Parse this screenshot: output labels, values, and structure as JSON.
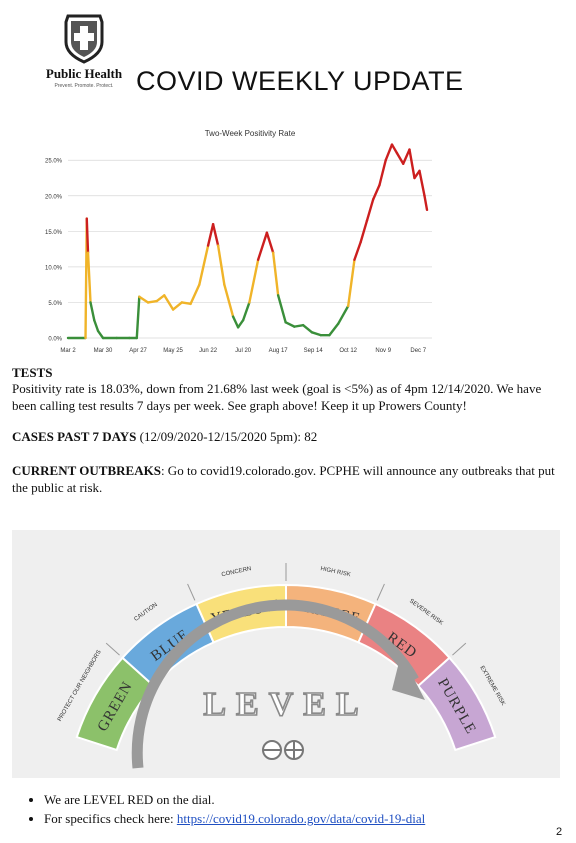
{
  "header": {
    "logo_text": "Public Health",
    "logo_tagline": "Prevent. Promote. Protect.",
    "title": "COVID WEEKLY UPDATE"
  },
  "chart_data": {
    "type": "line",
    "title": "Two-Week Positivity Rate",
    "xlabel": "",
    "ylabel": "",
    "x_tick_labels": [
      "Mar 2",
      "Mar 30",
      "Apr 27",
      "May 25",
      "Jun 22",
      "Jul 20",
      "Aug 17",
      "Sep 14",
      "Oct 12",
      "Nov 9",
      "Dec 7"
    ],
    "y_tick_labels": [
      "0.0%",
      "5.0%",
      "10.0%",
      "15.0%",
      "20.0%",
      "25.0%"
    ],
    "ylim": [
      0,
      27
    ],
    "grid": true,
    "color_scale": {
      "low": "#3a8f3a",
      "mid": "#f0b429",
      "high": "#cc1f1f"
    },
    "series": [
      {
        "x": [
          "2020-03-02",
          "2020-03-16",
          "2020-03-17",
          "2020-03-18",
          "2020-03-20",
          "2020-03-23",
          "2020-03-26",
          "2020-03-30",
          "2020-04-10",
          "2020-04-20",
          "2020-04-26",
          "2020-04-28",
          "2020-05-05",
          "2020-05-12",
          "2020-05-18",
          "2020-05-25",
          "2020-06-01",
          "2020-06-08",
          "2020-06-15",
          "2020-06-22",
          "2020-06-26",
          "2020-06-30",
          "2020-07-05",
          "2020-07-12",
          "2020-07-16",
          "2020-07-20",
          "2020-07-25",
          "2020-08-01",
          "2020-08-08",
          "2020-08-13",
          "2020-08-17",
          "2020-08-23",
          "2020-08-30",
          "2020-09-06",
          "2020-09-13",
          "2020-09-20",
          "2020-09-27",
          "2020-10-04",
          "2020-10-12",
          "2020-10-17",
          "2020-10-22",
          "2020-10-27",
          "2020-11-01",
          "2020-11-06",
          "2020-11-11",
          "2020-11-16",
          "2020-11-20",
          "2020-11-25",
          "2020-11-30",
          "2020-12-04",
          "2020-12-08",
          "2020-12-12",
          "2020-12-14"
        ],
        "y": [
          0.0,
          0.0,
          16.8,
          12.0,
          5.0,
          2.5,
          1.0,
          0.0,
          0.0,
          0.0,
          0.0,
          5.8,
          5.0,
          5.2,
          6.0,
          4.0,
          5.0,
          4.8,
          7.5,
          13.0,
          16.0,
          13.0,
          7.5,
          3.0,
          1.5,
          2.5,
          5.0,
          11.0,
          14.8,
          12.0,
          6.0,
          2.2,
          1.6,
          1.8,
          0.8,
          0.4,
          0.4,
          2.0,
          4.5,
          11.0,
          13.5,
          16.5,
          19.5,
          21.5,
          25.0,
          27.2,
          26.0,
          24.5,
          26.5,
          22.5,
          23.5,
          20.0,
          18.03
        ]
      }
    ]
  },
  "tests": {
    "heading": "TESTS",
    "text": "Positivity rate is 18.03%, down from 21.68% last week (goal is <5%) as of 4pm 12/14/2020. We have been calling test results 7 days per week. See graph above! Keep it up Prowers County!"
  },
  "cases": {
    "label": "CASES PAST 7 DAYS",
    "text": " (12/09/2020-12/15/2020 5pm): 82"
  },
  "outbreaks": {
    "label": "CURRENT OUTBREAKS",
    "text": ": Go to covid19.colorado.gov. PCPHE will announce any outbreaks that put the public at risk."
  },
  "dial": {
    "center_label": "LEVEL",
    "segments": [
      {
        "name": "GREEN",
        "risk": "PROTECT OUR NEIGHBORS",
        "color": "#8cc16a"
      },
      {
        "name": "BLUE",
        "risk": "CAUTION",
        "color": "#69a9dc"
      },
      {
        "name": "YELLOW",
        "risk": "CONCERN",
        "color": "#f9e07a"
      },
      {
        "name": "ORANGE",
        "risk": "HIGH RISK",
        "color": "#f4b37c"
      },
      {
        "name": "RED",
        "risk": "SEVERE RISK",
        "color": "#ea8283"
      },
      {
        "name": "PURPLE",
        "risk": "EXTREME RISK",
        "color": "#c7a6d3"
      }
    ]
  },
  "bullets": {
    "item1": "We are LEVEL RED on the dial.",
    "item2_prefix": "For specifics check here: ",
    "item2_link": "https://covid19.colorado.gov/data/covid-19-dial"
  },
  "page_number": "2"
}
